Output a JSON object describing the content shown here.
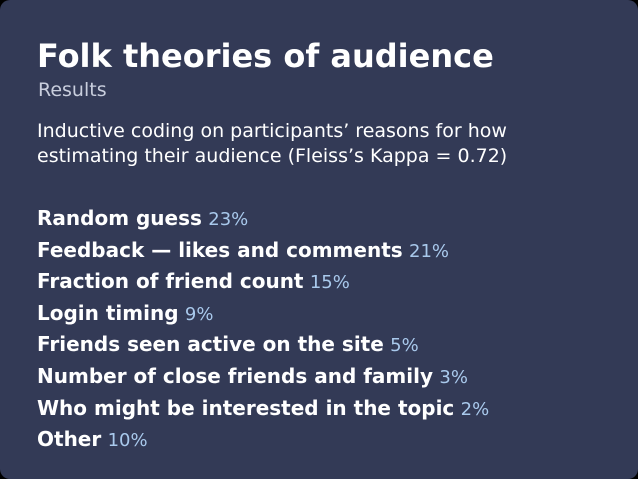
{
  "slide": {
    "title": "Folk theories of audience",
    "subtitle": "Results",
    "intro_lines": [
      "Inductive coding on participants’ reasons for how",
      "estimating their audience (Fleiss’s Kappa = 0.72)"
    ],
    "results": [
      {
        "label": "Random guess",
        "percent": "23%"
      },
      {
        "label": "Feedback — likes and comments",
        "percent": "21%"
      },
      {
        "label": "Fraction of friend count",
        "percent": "15%"
      },
      {
        "label": "Login timing",
        "percent": "9%"
      },
      {
        "label": "Friends seen active on the site",
        "percent": "5%"
      },
      {
        "label": "Number of close friends and family",
        "percent": "3%"
      },
      {
        "label": "Who might be interested in the topic",
        "percent": "2%"
      },
      {
        "label": "Other",
        "percent": "10%"
      }
    ]
  },
  "colors": {
    "background": "#333a56",
    "text": "#ffffff",
    "subtitle": "#c9cedd",
    "percent_accent": "#a9c9ec"
  }
}
